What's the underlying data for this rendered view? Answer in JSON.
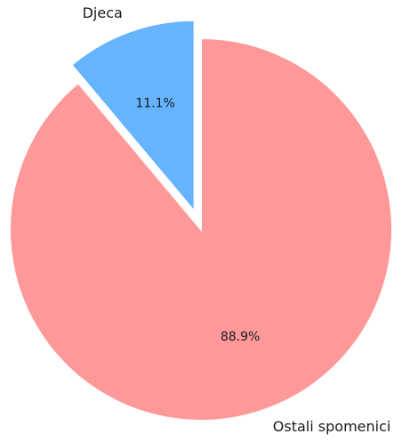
{
  "chart_data": {
    "type": "pie",
    "title": "",
    "slices": [
      {
        "label": "Djeca",
        "value": 11.1,
        "pct_label": "11.1%",
        "color": "#66b3ff",
        "exploded": true
      },
      {
        "label": "Ostali spomenici",
        "value": 88.9,
        "pct_label": "88.9%",
        "color": "#ff9999",
        "exploded": false
      }
    ],
    "start_angle_deg": 90,
    "direction": "counterclockwise",
    "edge_color": "#ffffff",
    "legend": "none"
  }
}
